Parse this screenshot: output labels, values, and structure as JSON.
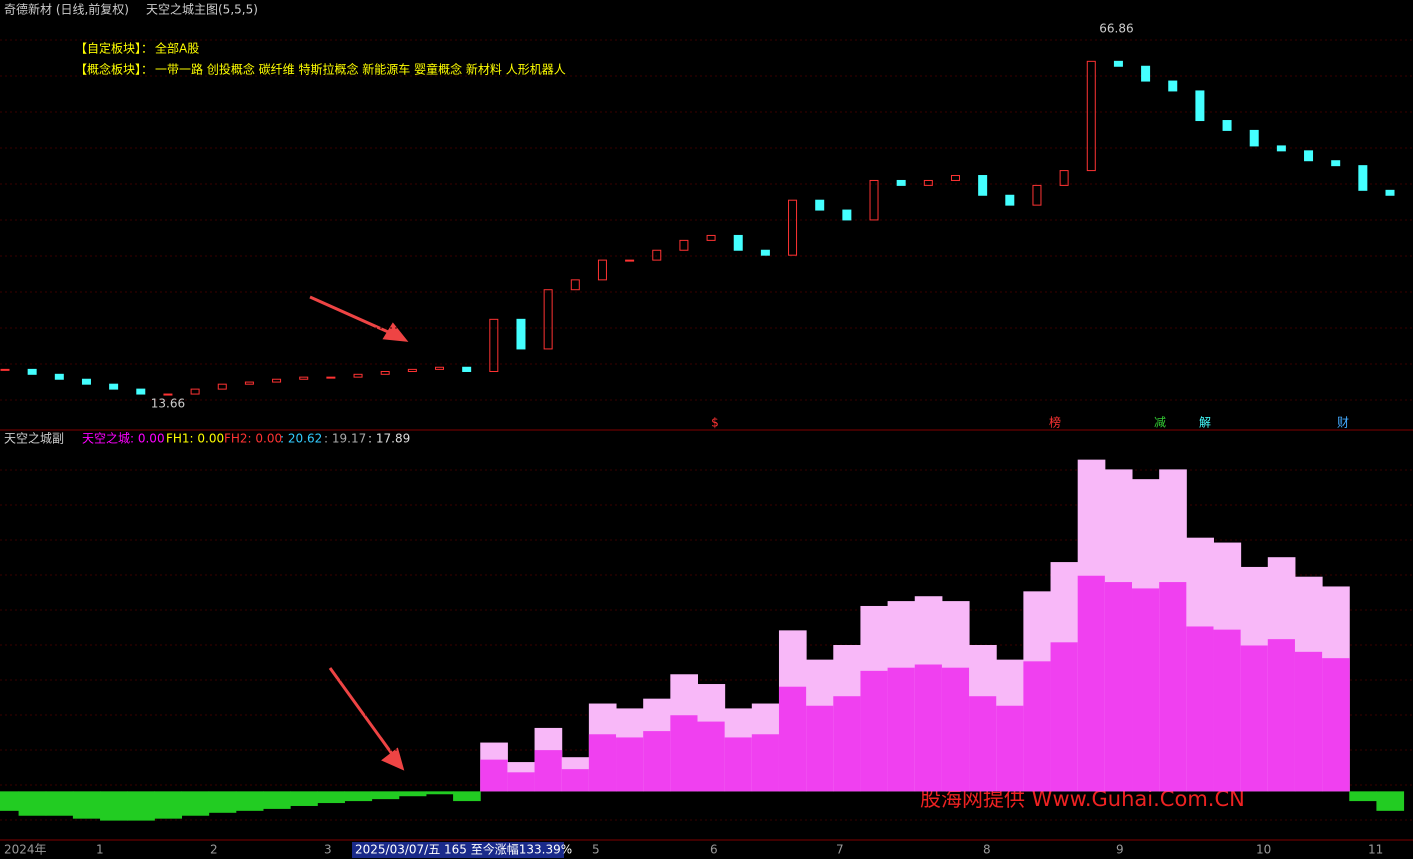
{
  "header": {
    "stock": "奇德新材 (日线,前复权)",
    "indicator": "天空之城主图(5,5,5)"
  },
  "info": {
    "custom_label": "【自定板块】：",
    "custom_value": "全部A股",
    "concept_label": "【概念板块】：",
    "concept_value": "一带一路 创投概念 碳纤维 特斯拉概念 新能源车 婴童概念 新材料 人形机器人"
  },
  "main_chart": {
    "type": "candlestick",
    "ylim": [
      10,
      71
    ],
    "high": 66.86,
    "high_index": 40,
    "low": 13.66,
    "low_index": 5,
    "closes": [
      18.6,
      17.9,
      17.2,
      16.5,
      15.8,
      15.1,
      15.1,
      15.8,
      16.5,
      16.8,
      17.2,
      17.5,
      17.5,
      17.9,
      18.3,
      18.6,
      18.9,
      18.3,
      25.7,
      21.5,
      29.9,
      31.3,
      34.1,
      34.1,
      35.5,
      36.9,
      37.6,
      35.5,
      34.8,
      42.6,
      41.2,
      39.8,
      45.4,
      44.7,
      45.4,
      46.1,
      43.3,
      41.9,
      44.7,
      46.8,
      62.3,
      61.6,
      59.5,
      58.1,
      53.9,
      52.5,
      50.3,
      49.6,
      48.2,
      47.5,
      44.0,
      43.3
    ]
  },
  "events": [
    "$",
    "榜",
    "减",
    "解",
    "财"
  ],
  "sub_header": {
    "name": "天空之城副",
    "sky": "天空之城: 0.00",
    "fh1": "FH1: 0.00",
    "fh2": "FH2: 0.00",
    "v1": ": 20.62",
    "v2": ": 19.17",
    "v3": ": 17.89"
  },
  "sub_chart": {
    "type": "bar",
    "ylim": [
      -55,
      355
    ],
    "values": [
      -20,
      -25,
      -25,
      -28,
      -30,
      -30,
      -28,
      -25,
      -22,
      -20,
      -18,
      -15,
      -12,
      -10,
      -8,
      -5,
      -3,
      -10,
      50,
      30,
      65,
      35,
      90,
      85,
      95,
      120,
      110,
      85,
      90,
      165,
      135,
      150,
      190,
      195,
      200,
      195,
      150,
      135,
      205,
      235,
      340,
      330,
      320,
      330,
      260,
      255,
      230,
      240,
      220,
      210,
      -10,
      -20
    ]
  },
  "x_axis": [
    "2024年",
    "1",
    "2",
    "3",
    "5",
    "6",
    "7",
    "8",
    "9",
    "10",
    "11"
  ],
  "status": "2025/03/07/五 165 至今涨幅133.39%",
  "watermark": "股海网提供 Www.Guhai.Com.CN"
}
